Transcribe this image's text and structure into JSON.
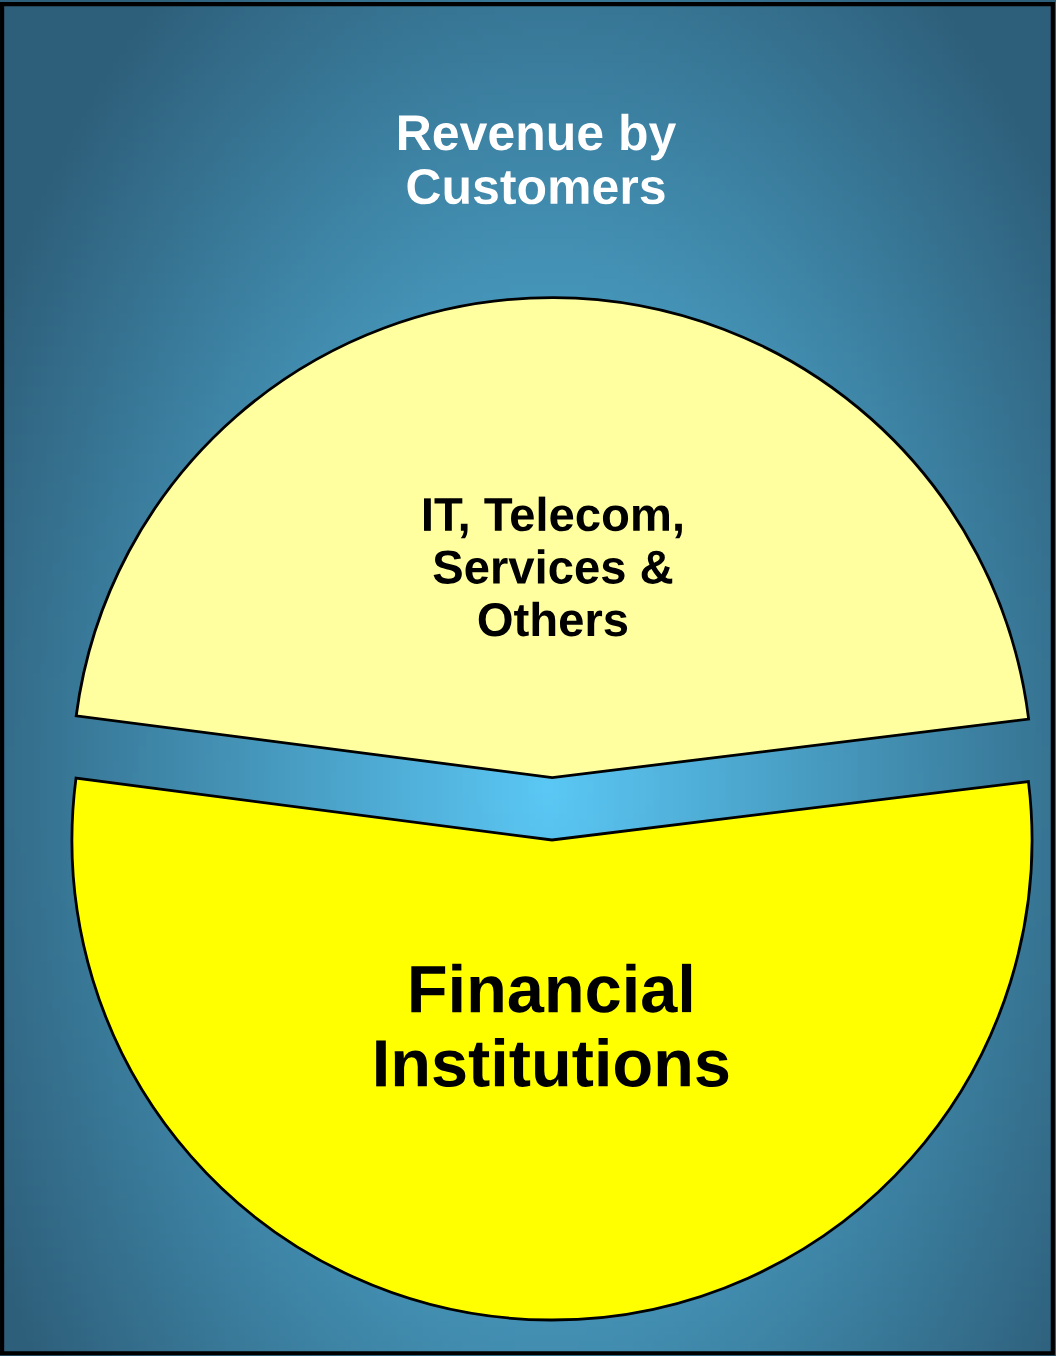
{
  "chart_data": {
    "type": "pie",
    "title": "Revenue by\nCustomers",
    "categories": [
      "IT, Telecom,\nServices &\nOthers",
      "Financial\nInstitutions"
    ],
    "values": [
      46,
      54
    ],
    "colors": [
      "#ffffa0",
      "#ffff00"
    ]
  }
}
